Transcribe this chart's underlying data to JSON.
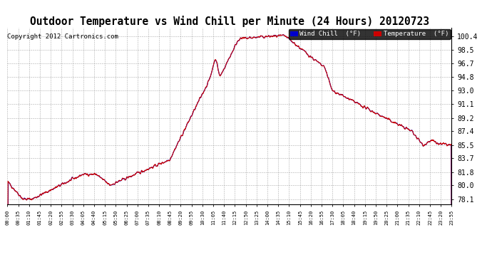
{
  "title": "Outdoor Temperature vs Wind Chill per Minute (24 Hours) 20120723",
  "copyright": "Copyright 2012 Cartronics.com",
  "legend_wind_chill": "Wind Chill  (°F)",
  "legend_temperature": "Temperature  (°F)",
  "wind_chill_color": "#0000CC",
  "temperature_color": "#CC0000",
  "background_color": "#FFFFFF",
  "plot_bg_color": "#FFFFFF",
  "grid_color": "#999999",
  "title_fontsize": 10.5,
  "copyright_fontsize": 6.5,
  "legend_fontsize": 6.5,
  "ylabel_right_values": [
    78.1,
    80.0,
    81.8,
    83.7,
    85.5,
    87.4,
    89.2,
    91.1,
    93.0,
    94.8,
    96.7,
    98.5,
    100.4
  ],
  "ylim": [
    77.4,
    101.5
  ],
  "x_tick_labels": [
    "00:00",
    "00:35",
    "01:10",
    "01:45",
    "02:20",
    "02:55",
    "03:30",
    "04:05",
    "04:40",
    "05:15",
    "05:50",
    "06:25",
    "07:00",
    "07:35",
    "08:10",
    "08:45",
    "09:20",
    "09:55",
    "10:30",
    "11:05",
    "11:40",
    "12:15",
    "12:50",
    "13:25",
    "14:00",
    "14:35",
    "15:10",
    "15:45",
    "16:20",
    "16:55",
    "17:30",
    "18:05",
    "18:40",
    "19:15",
    "19:50",
    "20:25",
    "21:00",
    "21:35",
    "22:10",
    "22:45",
    "23:20",
    "23:55"
  ],
  "num_points": 1440
}
